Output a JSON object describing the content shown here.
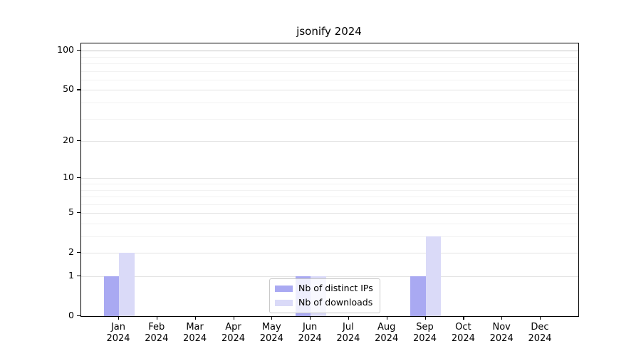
{
  "chart_data": {
    "type": "bar",
    "title": "jsonify 2024",
    "categories": [
      "Jan",
      "Feb",
      "Mar",
      "Apr",
      "May",
      "Jun",
      "Jul",
      "Aug",
      "Sep",
      "Oct",
      "Nov",
      "Dec"
    ],
    "category_year": "2024",
    "series": [
      {
        "name": "Nb of distinct IPs",
        "color": "#a9a9f2",
        "values": [
          1,
          0,
          0,
          0,
          0,
          1,
          0,
          0,
          1,
          0,
          0,
          0
        ]
      },
      {
        "name": "Nb of downloads",
        "color": "#dadaf8",
        "values": [
          2,
          0,
          0,
          0,
          0,
          1,
          0,
          0,
          3,
          0,
          0,
          0
        ]
      }
    ],
    "xlabel": "",
    "ylabel": "",
    "yscale": "log1p",
    "ylim": [
      0,
      113.6
    ],
    "y_major_ticks": [
      0,
      1,
      2,
      5,
      10,
      20,
      50,
      100
    ],
    "y_minor_ticks": [
      3,
      4,
      6,
      7,
      8,
      9,
      30,
      40,
      60,
      70,
      80,
      90
    ],
    "grid": "horizontal",
    "legend_position": "lower-center"
  }
}
